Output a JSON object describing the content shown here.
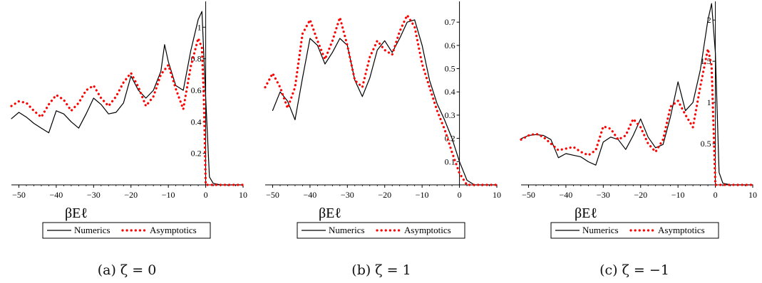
{
  "chart_data": [
    {
      "type": "line",
      "caption": "(a) ζ = 0",
      "xlabel": "βEℓ",
      "xlim": [
        -52,
        10
      ],
      "ylim": [
        0,
        1.15
      ],
      "xticks": [
        -50,
        -40,
        -30,
        -20,
        -10,
        0,
        10
      ],
      "xtick_labels": [
        "−50",
        "−40",
        "−30",
        "−20",
        "−10",
        "0",
        "10"
      ],
      "yticks": [
        0.2,
        0.4,
        0.6,
        0.8,
        1
      ],
      "ytick_labels": [
        "0.2",
        "0.4",
        "0.6",
        "0.8",
        "1"
      ],
      "legend_position": "bottom",
      "series": [
        {
          "name": "Numerics",
          "style": "solid",
          "color": "#000000",
          "x": [
            -52,
            -50,
            -48,
            -46,
            -44,
            -42,
            -40,
            -38,
            -36,
            -34,
            -32,
            -30,
            -28,
            -26,
            -24,
            -22,
            -20,
            -18,
            -16,
            -14,
            -12,
            -11,
            -10,
            -8,
            -6,
            -4,
            -2,
            -1,
            0,
            1,
            2,
            4,
            6,
            8,
            10
          ],
          "y": [
            0.42,
            0.46,
            0.43,
            0.39,
            0.36,
            0.33,
            0.47,
            0.45,
            0.4,
            0.36,
            0.45,
            0.55,
            0.51,
            0.45,
            0.46,
            0.52,
            0.69,
            0.6,
            0.55,
            0.6,
            0.72,
            0.89,
            0.78,
            0.63,
            0.6,
            0.85,
            1.05,
            1.1,
            0.55,
            0.05,
            0.01,
            0,
            0,
            0,
            0
          ]
        },
        {
          "name": "Asymptotics",
          "style": "dotted",
          "color": "#ff0000",
          "x": [
            -52,
            -50,
            -48,
            -46,
            -44,
            -42,
            -40,
            -38,
            -36,
            -34,
            -32,
            -30,
            -28,
            -26,
            -24,
            -22,
            -20,
            -18,
            -16,
            -14,
            -12,
            -10,
            -8,
            -6,
            -4,
            -2,
            -1,
            -0.5,
            0,
            2,
            4,
            6,
            8,
            10
          ],
          "y": [
            0.5,
            0.53,
            0.52,
            0.47,
            0.43,
            0.51,
            0.57,
            0.54,
            0.47,
            0.52,
            0.6,
            0.63,
            0.55,
            0.5,
            0.56,
            0.65,
            0.71,
            0.62,
            0.5,
            0.56,
            0.7,
            0.76,
            0.61,
            0.48,
            0.75,
            0.93,
            0.87,
            0.55,
            0,
            0,
            0,
            0,
            0,
            0
          ]
        }
      ]
    },
    {
      "type": "line",
      "caption": "(b) ζ = 1",
      "xlabel": "βEℓ",
      "xlim": [
        -52,
        10
      ],
      "ylim": [
        0,
        0.78
      ],
      "xticks": [
        -50,
        -40,
        -30,
        -20,
        -10,
        0,
        10
      ],
      "xtick_labels": [
        "−50",
        "−40",
        "−30",
        "−20",
        "−10",
        "0",
        "10"
      ],
      "yticks": [
        0.1,
        0.2,
        0.3,
        0.4,
        0.5,
        0.6,
        0.7
      ],
      "ytick_labels": [
        "0.1",
        "0.2",
        "0.3",
        "0.4",
        "0.5",
        "0.6",
        "0.7"
      ],
      "legend_position": "bottom",
      "series": [
        {
          "name": "Numerics",
          "style": "solid",
          "color": "#000000",
          "x": [
            -50,
            -48,
            -46,
            -44,
            -42,
            -40,
            -38,
            -36,
            -34,
            -32,
            -30,
            -28,
            -26,
            -24,
            -22,
            -20,
            -18,
            -16,
            -14,
            -12,
            -10,
            -8,
            -6,
            -4,
            -2,
            0,
            2,
            4,
            6,
            8,
            10
          ],
          "y": [
            0.32,
            0.4,
            0.36,
            0.28,
            0.46,
            0.63,
            0.6,
            0.52,
            0.57,
            0.63,
            0.6,
            0.45,
            0.38,
            0.46,
            0.58,
            0.62,
            0.57,
            0.63,
            0.7,
            0.71,
            0.6,
            0.45,
            0.35,
            0.28,
            0.2,
            0.1,
            0.02,
            0,
            0,
            0,
            0
          ]
        },
        {
          "name": "Asymptotics",
          "style": "dotted",
          "color": "#ff0000",
          "x": [
            -52,
            -50,
            -48,
            -46,
            -44,
            -42,
            -40,
            -38,
            -36,
            -34,
            -32,
            -30,
            -28,
            -26,
            -24,
            -22,
            -20,
            -18,
            -16,
            -14,
            -12,
            -10,
            -8,
            -6,
            -4,
            -2,
            0,
            2,
            4,
            6,
            8,
            10
          ],
          "y": [
            0.42,
            0.48,
            0.42,
            0.33,
            0.42,
            0.65,
            0.71,
            0.62,
            0.54,
            0.62,
            0.72,
            0.6,
            0.45,
            0.42,
            0.55,
            0.62,
            0.58,
            0.56,
            0.66,
            0.73,
            0.68,
            0.52,
            0.42,
            0.32,
            0.24,
            0.14,
            0.05,
            0,
            0,
            0,
            0,
            0
          ]
        }
      ]
    },
    {
      "type": "line",
      "caption": "(c) ζ = −1",
      "xlabel": "βEℓ",
      "xlim": [
        -52,
        10
      ],
      "ylim": [
        0,
        2.2
      ],
      "xticks": [
        -50,
        -40,
        -30,
        -20,
        -10,
        0,
        10
      ],
      "xtick_labels": [
        "−50",
        "−40",
        "−30",
        "−20",
        "−10",
        "0",
        "10"
      ],
      "yticks": [
        0.5,
        1,
        1.5,
        2
      ],
      "ytick_labels": [
        "0.5",
        "1",
        "1.5",
        "2"
      ],
      "legend_position": "bottom",
      "series": [
        {
          "name": "Numerics",
          "style": "solid",
          "color": "#000000",
          "x": [
            -52,
            -50,
            -48,
            -46,
            -44,
            -42,
            -40,
            -38,
            -36,
            -34,
            -32,
            -30,
            -28,
            -26,
            -24,
            -22,
            -20,
            -18,
            -16,
            -14,
            -12,
            -10,
            -8,
            -6,
            -4,
            -2,
            -1,
            0,
            1,
            2,
            4,
            6,
            8,
            10
          ],
          "y": [
            0.56,
            0.6,
            0.61,
            0.6,
            0.55,
            0.33,
            0.38,
            0.36,
            0.34,
            0.28,
            0.24,
            0.52,
            0.58,
            0.55,
            0.43,
            0.6,
            0.8,
            0.58,
            0.45,
            0.49,
            0.83,
            1.25,
            0.9,
            1.0,
            1.4,
            2.0,
            2.2,
            1.6,
            0.15,
            0.02,
            0,
            0,
            0,
            0
          ]
        },
        {
          "name": "Asymptotics",
          "style": "dotted",
          "color": "#ff0000",
          "x": [
            -52,
            -50,
            -48,
            -46,
            -44,
            -42,
            -40,
            -38,
            -36,
            -34,
            -32,
            -30,
            -28,
            -26,
            -24,
            -22,
            -20,
            -18,
            -16,
            -14,
            -12,
            -10,
            -8,
            -6,
            -4,
            -2,
            -1,
            -0.5,
            0,
            2,
            4,
            6,
            8,
            10
          ],
          "y": [
            0.55,
            0.6,
            0.62,
            0.58,
            0.5,
            0.42,
            0.44,
            0.46,
            0.4,
            0.36,
            0.42,
            0.71,
            0.68,
            0.55,
            0.6,
            0.8,
            0.7,
            0.5,
            0.4,
            0.55,
            0.95,
            1.02,
            0.85,
            0.7,
            1.2,
            1.65,
            1.45,
            0.7,
            0,
            0,
            0,
            0,
            0,
            0
          ]
        }
      ]
    }
  ]
}
